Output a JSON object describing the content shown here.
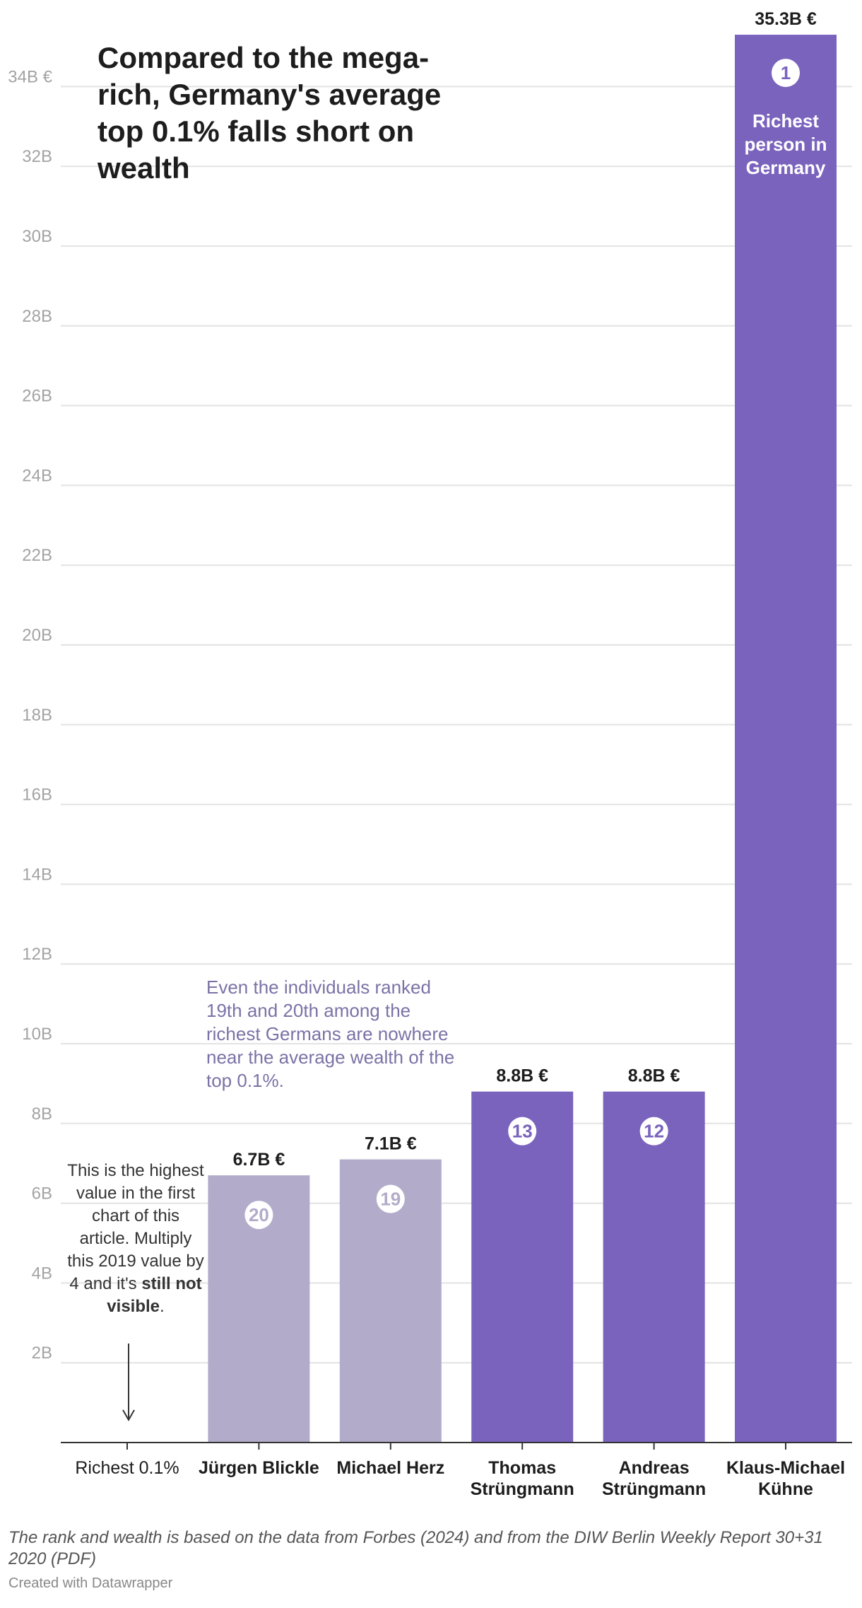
{
  "title": "Compared to the mega-rich, Germany's average top 0.1% falls short on wealth",
  "chart_data": {
    "type": "bar",
    "title": "Compared to the mega-rich, Germany's average top 0.1% falls short on wealth",
    "xlabel": "",
    "ylabel": "",
    "ylim": [
      0,
      35.3
    ],
    "yticks": [
      2,
      4,
      6,
      8,
      10,
      12,
      14,
      16,
      18,
      20,
      22,
      24,
      26,
      28,
      30,
      32,
      34
    ],
    "ytick_labels": [
      "2B",
      "4B",
      "6B",
      "8B",
      "10B",
      "12B",
      "14B",
      "16B",
      "18B",
      "20B",
      "22B",
      "24B",
      "26B",
      "28B",
      "30B",
      "32B",
      "34B €"
    ],
    "grid": true,
    "categories": [
      "Richest 0.1%",
      "Jürgen Blickle",
      "Michael Herz",
      "Thomas Strüngmann",
      "Andreas Strüngmann",
      "Klaus-Michael Kühne"
    ],
    "category_lines": [
      [
        "Richest 0.1%"
      ],
      [
        "Jürgen Blickle"
      ],
      [
        "Michael Herz"
      ],
      [
        "Thomas",
        "Strüngmann"
      ],
      [
        "Andreas",
        "Strüngmann"
      ],
      [
        "Klaus-Michael",
        "Kühne"
      ]
    ],
    "category_bold": [
      false,
      true,
      true,
      true,
      true,
      true
    ],
    "values": [
      0.0,
      6.7,
      7.1,
      8.8,
      8.8,
      35.3
    ],
    "value_labels": [
      "",
      "6.7B €",
      "7.1B €",
      "8.8B €",
      "8.8B €",
      "35.3B €"
    ],
    "ranks": [
      "",
      "20",
      "19",
      "13",
      "12",
      "1"
    ],
    "colors": [
      "#b2acca",
      "#b2acca",
      "#b2acca",
      "#7a63bd",
      "#7a63bd",
      "#7a63bd"
    ],
    "bar_annotation": [
      "Richest",
      "person in",
      "Germany"
    ],
    "annotations": {
      "left_note": {
        "text": "This is the highest value in the first chart of this article. Multiply this 2019 value by 4 and it's ",
        "bold": "still not visible",
        "end": "."
      },
      "purple_note": "Even the individuals ranked 19th and 20th among the richest Germans are nowhere near the average wealth of the top 0.1%."
    }
  },
  "footer": {
    "source": "The rank and wealth is based on the data from Forbes (2024) and from the DIW Berlin Weekly Report 30+31 2020 (PDF)",
    "credit": "Created with Datawrapper"
  }
}
